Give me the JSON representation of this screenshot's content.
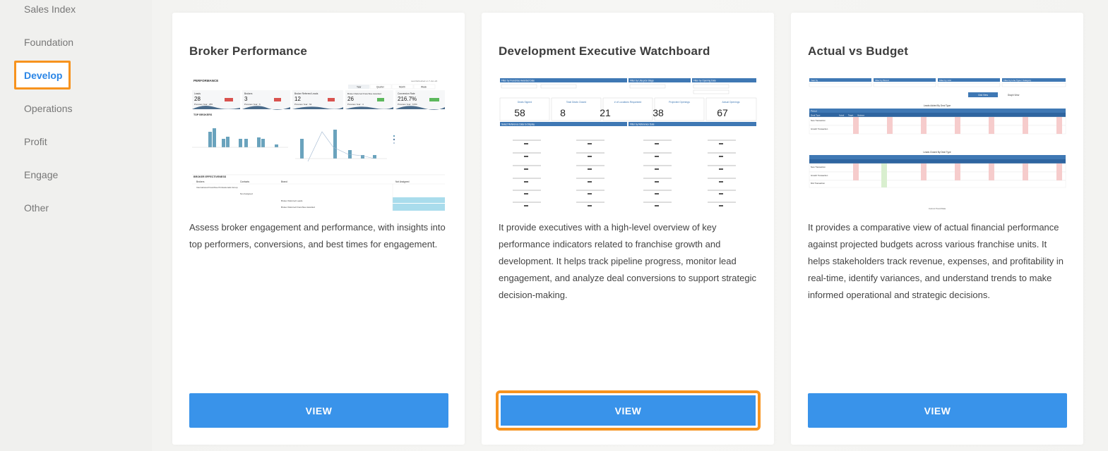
{
  "sidebar": {
    "items": [
      {
        "label": "Sales Index",
        "active": false
      },
      {
        "label": "Foundation",
        "active": false
      },
      {
        "label": "Develop",
        "active": true
      },
      {
        "label": "Operations",
        "active": false
      },
      {
        "label": "Profit",
        "active": false
      },
      {
        "label": "Engage",
        "active": false
      },
      {
        "label": "Other",
        "active": false
      }
    ]
  },
  "cards": [
    {
      "title": "Broker Performance",
      "description": "Assess broker engagement and performance, with insights into top performers, conversions, and best times for engagement.",
      "button_label": "VIEW",
      "thumbnail": {
        "header": "PERFORMANCE",
        "header_right": "Last Refreshed on 7-Jun-24",
        "filters": [
          "Year",
          "Quarter",
          "Month",
          "Week"
        ],
        "kpis": [
          {
            "label": "Leads",
            "value": "28",
            "sub": "Previous Year : 255"
          },
          {
            "label": "Brokers",
            "value": "3",
            "sub": "Previous Year : 6"
          },
          {
            "label": "Broker Referred Leads",
            "value": "12",
            "sub": "Previous Year : 62"
          },
          {
            "label": "Broker Referred Franchise Awarded",
            "value": "26",
            "sub": "Previous Year : 4"
          },
          {
            "label": "Conversion Rate",
            "value": "216.7%",
            "sub": "Previous Year : 6.5%"
          }
        ],
        "section_top": "TOP BROKERS",
        "section_eff": "BROKER EFFECTIVENESS",
        "table_headers": [
          "Brokers",
          "Contacts",
          "Brand",
          "Not Assigned"
        ],
        "rows": [
          "International Franchise Professionals Group",
          "Not Assigned",
          "Broker Referred Leads",
          "Broker Referred Franchise Awarded"
        ]
      }
    },
    {
      "title": "Development Executive Watchboard",
      "description": "It provide executives with a high-level overview of key performance indicators related to franchise growth and development. It helps track pipeline progress, monitor lead engagement, and analyze deal conversions to support strategic decision-making.",
      "button_label": "VIEW",
      "thumbnail": {
        "filters": [
          "Filter by Franchise Awarded Date",
          "Filter by Lifecycle Stage",
          "Filter by Opening Date"
        ],
        "kpis": [
          {
            "label": "Deals Signed",
            "value": "58"
          },
          {
            "label": "Total Deals Closed",
            "value": "8"
          },
          {
            "label": "# of Locations Requested",
            "value": "21"
          },
          {
            "label": "Projected Openings",
            "value": "38"
          },
          {
            "label": "Actual Openings",
            "value": "67"
          }
        ],
        "section_left": "Select Reference Data to Display",
        "section_right": "Filter by Reference Date"
      }
    },
    {
      "title": "Actual vs Budget",
      "description": "It provides a comparative view of actual financial performance against projected budgets across various franchise units. It helps stakeholders track revenue, expenses, and profitability in real-time, identify variances, and understand trends to make informed operational and strategic decisions.",
      "button_label": "VIEW",
      "thumbnail": {
        "filters": [
          "Year by",
          "Filter by Brand",
          "Filter by Unit",
          "Filter by Line Type / Category"
        ],
        "tabs": [
          "Grid View",
          "Graph View"
        ],
        "table1_title": "Leads Added By Deal Type",
        "table2_title": "Leads Closed By Deal Type",
        "period_label": "Period",
        "deal_label": "Deal Type",
        "col_labels": [
          "Actual",
          "Target",
          "Variance"
        ],
        "rows": [
          "New Transaction",
          "Growth Transaction",
          "M/A Transaction"
        ],
        "footer": "Current Trend Data"
      }
    }
  ],
  "colors": {
    "accent": "#3993ea",
    "highlight": "#f7931e",
    "bar": "#6aa3bd"
  }
}
